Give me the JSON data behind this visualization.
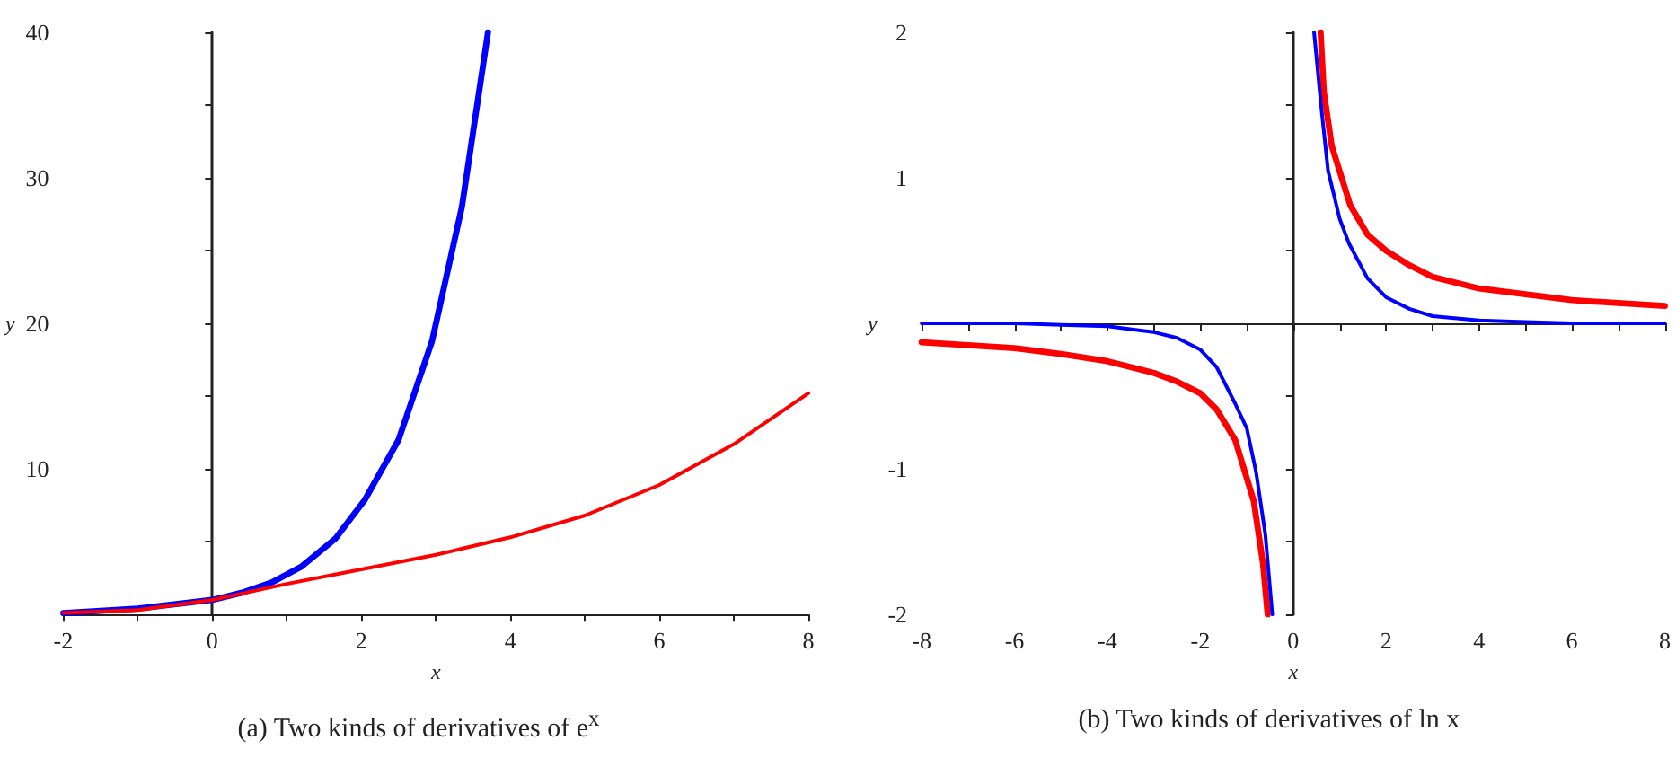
{
  "chart_data": [
    {
      "type": "line",
      "xlabel": "x",
      "ylabel": "y",
      "xlim": [
        -2,
        8
      ],
      "ylim": [
        0,
        40
      ],
      "xticks": [
        -2,
        {
          "value": -1,
          "label": null
        },
        0,
        {
          "value": 1,
          "label": null
        },
        2,
        {
          "value": 3,
          "label": null
        },
        4,
        {
          "value": 5,
          "label": null
        },
        6,
        {
          "value": 7,
          "label": null
        },
        8
      ],
      "yticks": [
        {
          "value": 5,
          "label": null
        },
        10,
        {
          "value": 15,
          "label": null
        },
        20,
        {
          "value": 25,
          "label": null
        },
        30,
        {
          "value": 35,
          "label": null
        },
        40
      ],
      "marker": "none",
      "line_style": "solid",
      "series": [
        {
          "color": "#0000ff",
          "x": [
            -2,
            -1,
            0,
            0.4,
            0.8,
            1.2,
            1.65,
            2.05,
            2.5,
            2.95,
            3.35,
            3.7
          ],
          "values": [
            0.1,
            0.4,
            1,
            1.5,
            2.2,
            3.3,
            5.2,
            7.9,
            12,
            18.8,
            28,
            40
          ]
        },
        {
          "color": "#ff0000",
          "x": [
            -2,
            -1,
            0,
            1,
            2,
            3,
            4,
            5,
            6,
            7,
            8
          ],
          "values": [
            0.1,
            0.3,
            1,
            2.1,
            3.1,
            4.1,
            5.3,
            6.8,
            8.9,
            11.7,
            15.2
          ]
        }
      ],
      "annotations": [
        "(a)  Two kinds of derivatives of e$^{x}$"
      ]
    },
    {
      "type": "line",
      "xlabel": "x",
      "ylabel": "y",
      "xlim": [
        -8,
        8
      ],
      "ylim": [
        -2,
        2
      ],
      "xticks": [
        -8,
        {
          "value": -7,
          "label": null
        },
        -6,
        {
          "value": -5,
          "label": null
        },
        -4,
        {
          "value": -3,
          "label": null
        },
        -2,
        {
          "value": -1,
          "label": null
        },
        0,
        {
          "value": 1,
          "label": null
        },
        2,
        {
          "value": 3,
          "label": null
        },
        4,
        {
          "value": 5,
          "label": null
        },
        6,
        {
          "value": 7,
          "label": null
        },
        8
      ],
      "yticks": [
        -2,
        {
          "value": -1.5,
          "label": null
        },
        -1,
        {
          "value": -0.5,
          "label": null
        },
        {
          "value": 0.5,
          "label": null
        },
        1,
        {
          "value": 1.5,
          "label": null
        },
        2
      ],
      "marker": "none",
      "line_style": "solid",
      "series": [
        {
          "color": "#ff0000",
          "x": [
            -8,
            -7,
            -6,
            -5,
            -4,
            -3,
            -2.5,
            -2,
            -1.65,
            -1.25,
            -0.85,
            -0.65,
            -0.55,
            null,
            0.59,
            0.66,
            0.83,
            1.23,
            1.6,
            2,
            2.5,
            3,
            4,
            5,
            6,
            7,
            8
          ],
          "values": [
            -0.13,
            -0.15,
            -0.17,
            -0.21,
            -0.26,
            -0.34,
            -0.4,
            -0.48,
            -0.59,
            -0.8,
            -1.22,
            -1.65,
            -2,
            null,
            2,
            1.59,
            1.22,
            0.81,
            0.61,
            0.5,
            0.4,
            0.32,
            0.24,
            0.2,
            0.16,
            0.14,
            0.12
          ]
        },
        {
          "color": "#0000ff",
          "x": [
            -8,
            -6,
            -5,
            -4,
            -3,
            -2.5,
            -2,
            -1.65,
            -1.25,
            -1,
            -0.8,
            -0.6,
            -0.45,
            null,
            0.45,
            0.6,
            0.75,
            1,
            1.2,
            1.6,
            2,
            2.5,
            3,
            4,
            5,
            6,
            8
          ],
          "values": [
            0,
            0,
            -0.01,
            -0.02,
            -0.06,
            -0.1,
            -0.18,
            -0.3,
            -0.55,
            -0.72,
            -1.02,
            -1.45,
            -2,
            null,
            2,
            1.5,
            1.05,
            0.72,
            0.55,
            0.31,
            0.18,
            0.1,
            0.05,
            0.02,
            0.01,
            0,
            0
          ]
        }
      ],
      "annotations": [
        "(b)  Two kinds of derivatives of ln x"
      ]
    }
  ]
}
